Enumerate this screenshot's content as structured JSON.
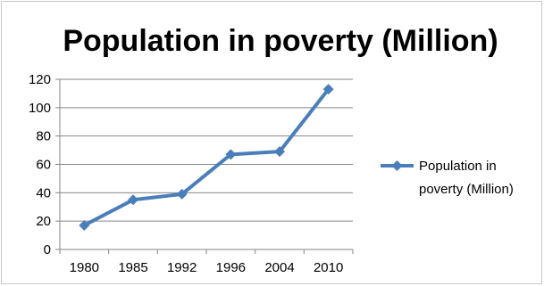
{
  "chart_data": {
    "type": "line",
    "title": "Population in poverty (Million)",
    "categories": [
      "1980",
      "1985",
      "1992",
      "1996",
      "2004",
      "2010"
    ],
    "series": [
      {
        "name": "Population in poverty (Million)",
        "values": [
          17,
          35,
          39,
          67,
          69,
          113
        ]
      }
    ],
    "ylim": [
      0,
      120
    ],
    "y_ticks": [
      0,
      20,
      40,
      60,
      80,
      100,
      120
    ],
    "grid": true,
    "legend": "right",
    "colors": {
      "series": "#4a7ebb",
      "grid": "#868686",
      "axis": "#868686"
    }
  }
}
